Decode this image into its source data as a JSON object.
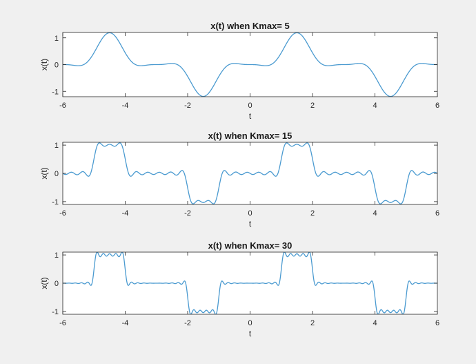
{
  "figure": {
    "background": "#f0f0f0",
    "axes_background": "#ffffff",
    "line_color": "#4a9ad0"
  },
  "chart_data": [
    {
      "type": "line",
      "title": "x(t) when Kmax= 5",
      "xlabel": "t",
      "ylabel": "x(t)",
      "xlim": [
        -6,
        6
      ],
      "ylim": [
        -1.2,
        1.2
      ],
      "xticks": [
        -6,
        -4,
        -2,
        0,
        2,
        4,
        6
      ],
      "xtick_labels": [
        "-6",
        "-4",
        "-2",
        "0",
        "2",
        "4",
        "6"
      ],
      "yticks": [
        -1,
        0,
        1
      ],
      "ytick_labels": [
        "-1",
        "0",
        "1"
      ],
      "series": [
        {
          "kmax": 5,
          "period": 6,
          "pulse_center": 1.5,
          "pulse_width": 1,
          "color": "#4a9ad0"
        }
      ]
    },
    {
      "type": "line",
      "title": "x(t) when Kmax= 15",
      "xlabel": "t",
      "ylabel": "x(t)",
      "xlim": [
        -6,
        6
      ],
      "ylim": [
        -1.1,
        1.1
      ],
      "xticks": [
        -6,
        -4,
        -2,
        0,
        2,
        4,
        6
      ],
      "xtick_labels": [
        "-6",
        "-4",
        "-2",
        "0",
        "2",
        "4",
        "6"
      ],
      "yticks": [
        -1,
        0,
        1
      ],
      "ytick_labels": [
        "-1",
        "0",
        "1"
      ],
      "series": [
        {
          "kmax": 15,
          "period": 6,
          "pulse_center": 1.5,
          "pulse_width": 1,
          "color": "#4a9ad0"
        }
      ]
    },
    {
      "type": "line",
      "title": "x(t) when Kmax= 30",
      "xlabel": "t",
      "ylabel": "x(t)",
      "xlim": [
        -6,
        6
      ],
      "ylim": [
        -1.1,
        1.1
      ],
      "xticks": [
        -6,
        -4,
        -2,
        0,
        2,
        4,
        6
      ],
      "xtick_labels": [
        "-6",
        "-4",
        "-2",
        "0",
        "2",
        "4",
        "6"
      ],
      "yticks": [
        -1,
        0,
        1
      ],
      "ytick_labels": [
        "-1",
        "0",
        "1"
      ],
      "series": [
        {
          "kmax": 30,
          "period": 6,
          "pulse_center": 1.5,
          "pulse_width": 1,
          "color": "#4a9ad0"
        }
      ]
    }
  ]
}
